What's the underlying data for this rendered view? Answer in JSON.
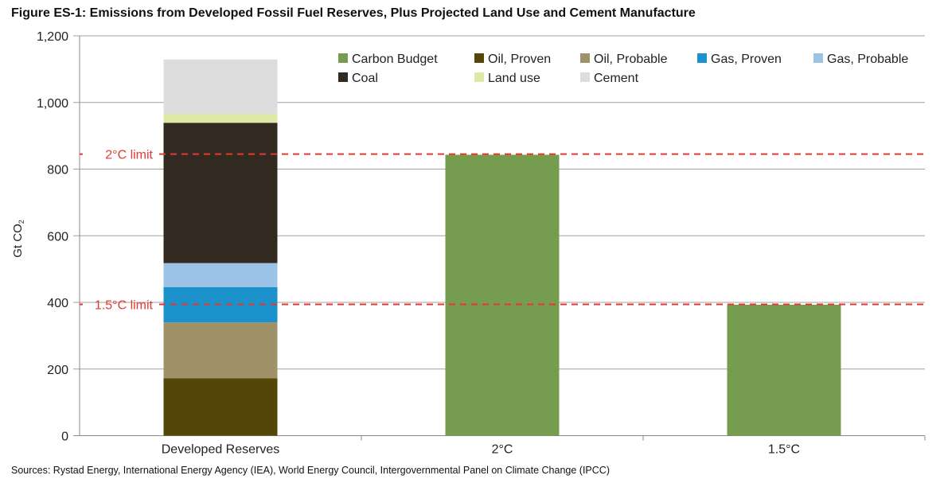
{
  "chart_data": {
    "type": "bar",
    "stacked": true,
    "title": "Figure ES-1: Emissions from Developed Fossil Fuel Reserves, Plus Projected Land Use and Cement Manufacture",
    "ylabel": "Gt CO",
    "ylabel_sub": "2",
    "ylim": [
      0,
      1200
    ],
    "yticks": [
      0,
      200,
      400,
      600,
      800,
      1000,
      1200
    ],
    "ytick_labels": [
      "0",
      "200",
      "400",
      "600",
      "800",
      "1,000",
      "1,200"
    ],
    "grid": true,
    "legend_placement": "top-right",
    "categories": [
      "Developed Reserves",
      "2°C",
      "1.5°C"
    ],
    "series": [
      {
        "name": "Carbon Budget",
        "color": "#769c4f",
        "values": [
          0,
          843,
          393
        ]
      },
      {
        "name": "Oil, Proven",
        "color": "#534606",
        "values": [
          172,
          0,
          0
        ]
      },
      {
        "name": "Oil, Probable",
        "color": "#9f9168",
        "values": [
          168,
          0,
          0
        ]
      },
      {
        "name": "Gas, Proven",
        "color": "#1b92cc",
        "values": [
          106,
          0,
          0
        ]
      },
      {
        "name": "Gas, Probable",
        "color": "#9cc2e5",
        "values": [
          72,
          0,
          0
        ]
      },
      {
        "name": "Coal",
        "color": "#322a20",
        "values": [
          421,
          0,
          0
        ]
      },
      {
        "name": "Land use",
        "color": "#dfe8a6",
        "values": [
          26,
          0,
          0
        ]
      },
      {
        "name": "Cement",
        "color": "#dddddd",
        "values": [
          164,
          0,
          0
        ]
      }
    ],
    "reference_lines": [
      {
        "label": "2°C limit",
        "value": 845,
        "color": "#e03a32"
      },
      {
        "label": "1.5°C limit",
        "value": 394,
        "color": "#e03a32"
      }
    ]
  },
  "source": "Sources: Rystad Energy, International Energy Agency (IEA), World Energy Council, Intergovernmental Panel on Climate Change (IPCC)"
}
